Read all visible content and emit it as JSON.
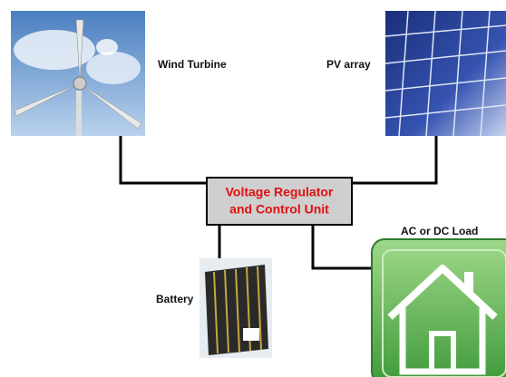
{
  "nodes": [
    {
      "label": "Wind Turbine"
    },
    {
      "label": "PV array"
    },
    {
      "label_lines": [
        "Voltage Regulator",
        "and Control Unit"
      ]
    },
    {
      "label": "AC or DC Load"
    },
    {
      "label": "Battery"
    }
  ]
}
